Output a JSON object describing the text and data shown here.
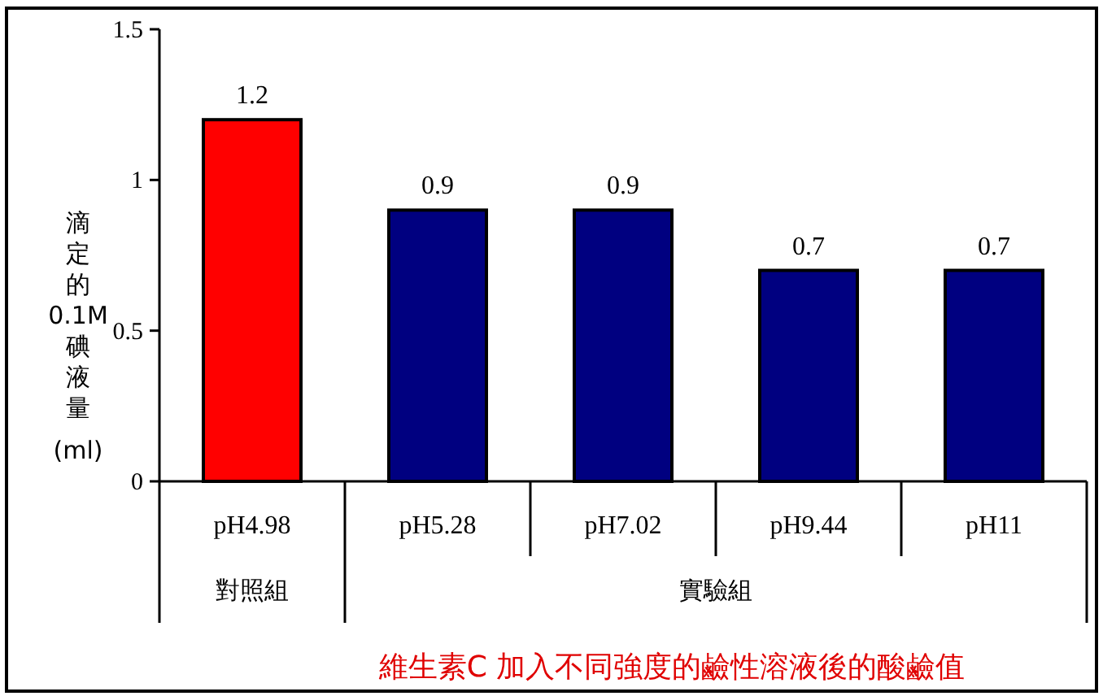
{
  "chart_data": {
    "type": "bar",
    "title": "維生素C 加入不同強度的鹼性溶液後的酸鹼值",
    "ylabel": "滴定的0.1M碘液量(ml)",
    "categories": [
      "pH4.98",
      "pH5.28",
      "pH7.02",
      "pH9.44",
      "pH11"
    ],
    "values": [
      1.2,
      0.9,
      0.9,
      0.7,
      0.7
    ],
    "colors": [
      "#ff0000",
      "#000080",
      "#000080",
      "#000080",
      "#000080"
    ],
    "ylim": [
      0,
      1.5
    ],
    "yticks": [
      0,
      0.5,
      1,
      1.5
    ],
    "data_labels": true,
    "grid": false,
    "annotations": [
      "對照組",
      "實驗組"
    ]
  }
}
